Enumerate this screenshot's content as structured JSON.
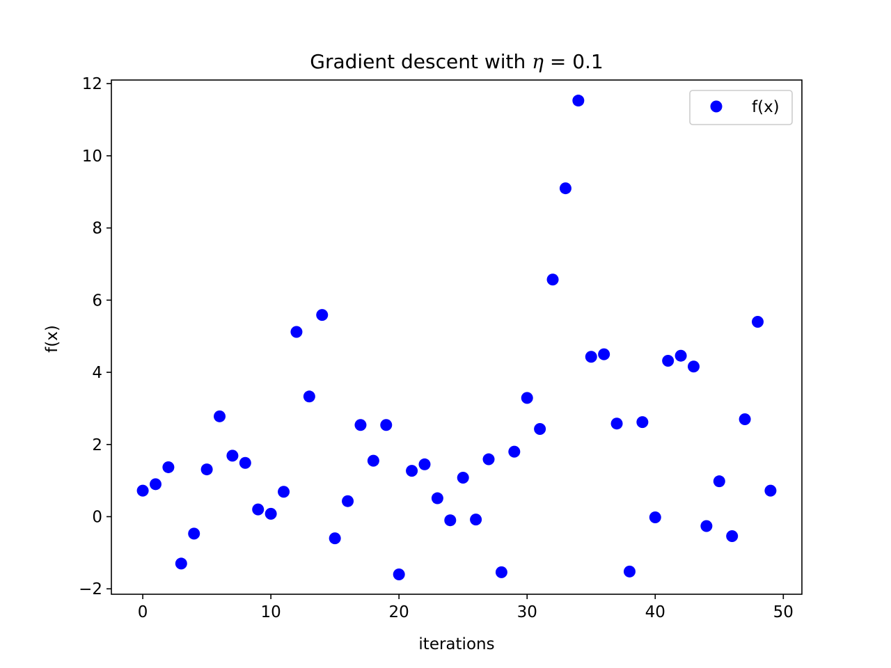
{
  "chart_data": {
    "type": "scatter",
    "title_prefix": "Gradient descent with ",
    "title_symbol": "η",
    "title_suffix": " = 0.1",
    "xlabel": "iterations",
    "ylabel": "f(x)",
    "xlim": [
      -2.45,
      51.45
    ],
    "ylim": [
      -2.15,
      12.1
    ],
    "xticks": [
      0,
      10,
      20,
      30,
      40,
      50
    ],
    "yticks": [
      -2,
      0,
      2,
      4,
      6,
      8,
      10,
      12
    ],
    "xtick_labels": [
      "0",
      "10",
      "20",
      "30",
      "40",
      "50"
    ],
    "ytick_labels": [
      "−2",
      "0",
      "2",
      "4",
      "6",
      "8",
      "10",
      "12"
    ],
    "legend_position": "top-right",
    "grid": false,
    "series": [
      {
        "name": "f(x)",
        "color": "#0000ff",
        "marker": "circle",
        "x": [
          0,
          1,
          2,
          3,
          4,
          5,
          6,
          7,
          8,
          9,
          10,
          11,
          12,
          13,
          14,
          15,
          16,
          17,
          18,
          19,
          20,
          21,
          22,
          23,
          24,
          25,
          26,
          27,
          28,
          29,
          30,
          31,
          32,
          33,
          34,
          35,
          36,
          37,
          38,
          39,
          40,
          41,
          42,
          43,
          44,
          45,
          46,
          47,
          48,
          49
        ],
        "y": [
          0.72,
          0.9,
          1.37,
          -1.3,
          -0.47,
          1.31,
          2.78,
          1.69,
          1.49,
          0.2,
          0.08,
          0.69,
          5.12,
          3.33,
          5.59,
          -0.6,
          0.43,
          2.54,
          1.55,
          2.54,
          -1.6,
          1.27,
          1.45,
          0.51,
          -0.1,
          1.08,
          -0.08,
          1.59,
          -1.54,
          1.8,
          3.29,
          2.43,
          6.57,
          9.1,
          11.53,
          4.43,
          4.5,
          2.58,
          -1.52,
          2.62,
          -0.02,
          4.32,
          4.46,
          4.16,
          -0.26,
          0.98,
          -0.54,
          2.7,
          5.4,
          0.72
        ]
      }
    ]
  }
}
